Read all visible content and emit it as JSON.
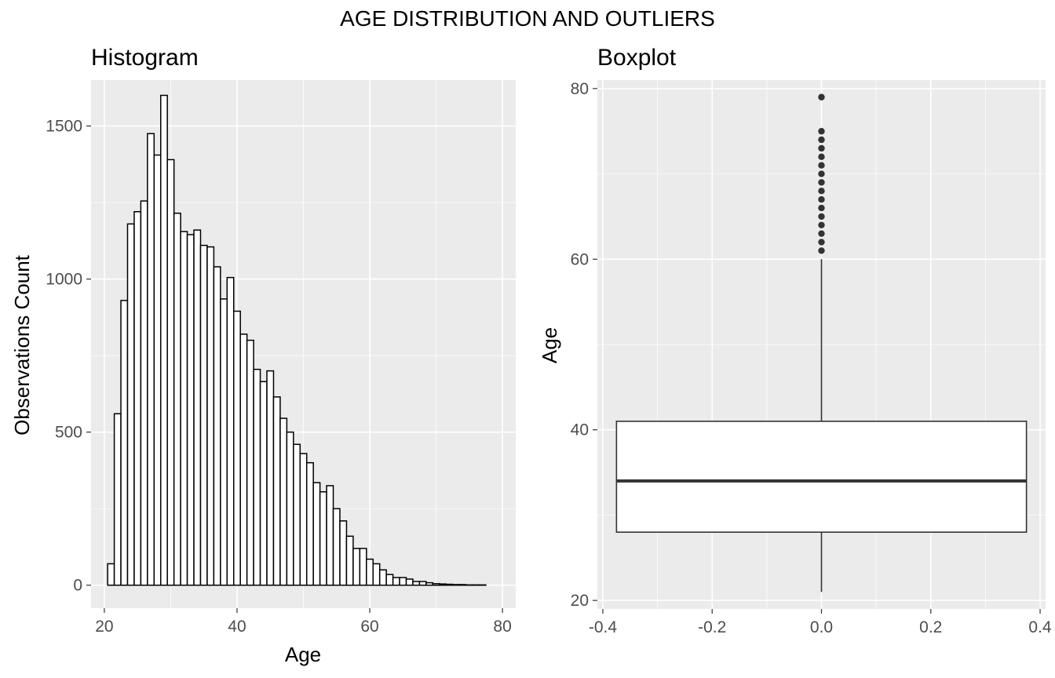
{
  "title": "AGE DISTRIBUTION AND OUTLIERS",
  "colors": {
    "panel_background": "#ebebeb",
    "grid_major": "#ffffff",
    "bar_fill": "#ffffff",
    "bar_stroke": "#000000",
    "box_stroke": "#333333",
    "outlier": "#333333",
    "tick_text": "#4d4d4d"
  },
  "chart_data": [
    {
      "type": "bar",
      "subtype": "histogram",
      "title": "Histogram",
      "xlabel": "Age",
      "ylabel": "Observations Count",
      "xlim": [
        18,
        82
      ],
      "ylim": [
        -75,
        1650
      ],
      "x_ticks": [
        20,
        40,
        60,
        80
      ],
      "x_tick_labels": [
        "20",
        "40",
        "60",
        "80"
      ],
      "y_ticks": [
        0,
        500,
        1000,
        1500
      ],
      "y_tick_labels": [
        "0",
        "500",
        "1000",
        "1500"
      ],
      "grid": true,
      "bin_start": 20.5,
      "bin_width": 1,
      "values": [
        70,
        560,
        930,
        1180,
        1220,
        1255,
        1475,
        1405,
        1600,
        1390,
        1215,
        1155,
        1145,
        1160,
        1110,
        1105,
        1040,
        935,
        1005,
        895,
        820,
        800,
        705,
        665,
        700,
        615,
        545,
        500,
        460,
        430,
        400,
        335,
        305,
        325,
        250,
        210,
        160,
        120,
        120,
        85,
        70,
        50,
        35,
        25,
        25,
        20,
        12,
        12,
        8,
        5,
        4,
        3,
        2,
        2,
        1,
        1,
        1,
        0,
        0
      ]
    },
    {
      "type": "boxplot",
      "title": "Boxplot",
      "xlabel": "",
      "ylabel": "Age",
      "xlim": [
        -0.41,
        0.41
      ],
      "ylim": [
        19,
        81
      ],
      "x_ticks": [
        -0.4,
        -0.2,
        0.0,
        0.2,
        0.4
      ],
      "x_tick_labels": [
        "-0.4",
        "-0.2",
        "0.0",
        "0.2",
        "0.4"
      ],
      "y_ticks": [
        20,
        40,
        60,
        80
      ],
      "y_tick_labels": [
        "20",
        "40",
        "60",
        "80"
      ],
      "grid": true,
      "box_x_range": [
        -0.375,
        0.375
      ],
      "whisker_low": 21,
      "q1": 28,
      "median": 34,
      "q3": 41,
      "whisker_high": 60,
      "outliers": [
        61,
        62,
        63,
        64,
        65,
        66,
        67,
        68,
        69,
        70,
        71,
        72,
        73,
        74,
        75,
        79
      ]
    }
  ]
}
